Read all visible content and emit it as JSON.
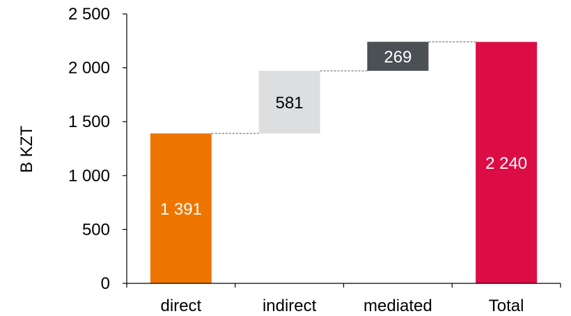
{
  "chart_data": {
    "type": "bar",
    "subtype": "waterfall",
    "title": "",
    "xlabel": "",
    "ylabel": "B KZT",
    "ylim": [
      0,
      2500
    ],
    "yticks": [
      0,
      500,
      1000,
      1500,
      2000,
      2500
    ],
    "ytick_labels": [
      "0",
      "500",
      "1 000",
      "1 500",
      "2 000",
      "2 500"
    ],
    "grid": false,
    "legend": "none",
    "categories": [
      "direct",
      "indirect",
      "mediated",
      "Total"
    ],
    "values": [
      1391,
      581,
      269,
      2240
    ],
    "bases": [
      0,
      1391,
      1972,
      0
    ],
    "data_labels": [
      "1 391",
      "581",
      "269",
      "2 240"
    ],
    "colors": [
      "#ee7600",
      "#dcdee0",
      "#4b5055",
      "#dc0d45"
    ],
    "label_colors": [
      "#ffffff",
      "#000000",
      "#ffffff",
      "#ffffff"
    ]
  }
}
